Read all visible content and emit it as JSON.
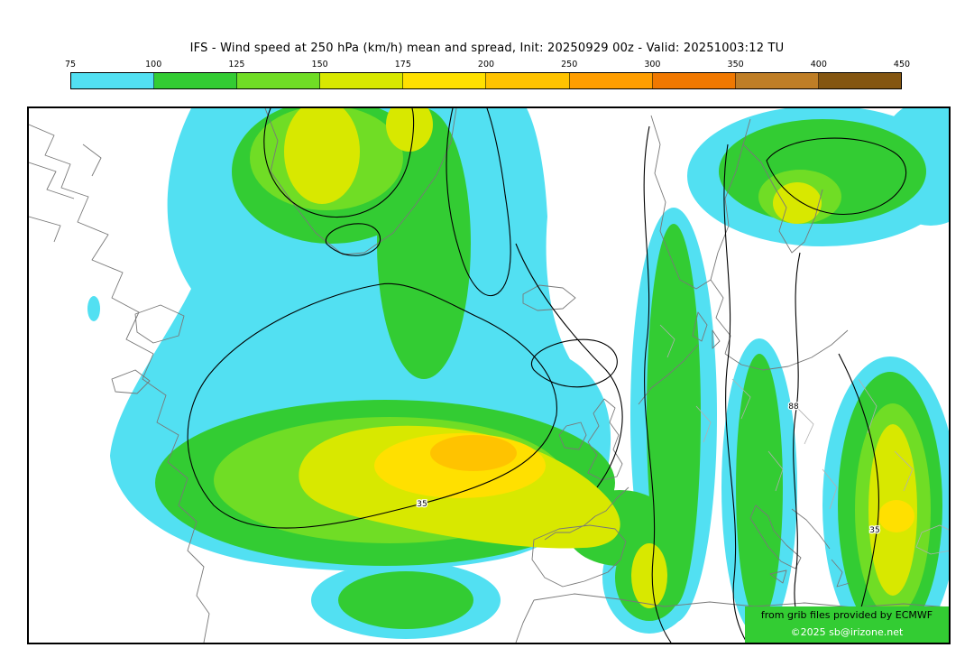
{
  "title": "IFS - Wind speed at 250 hPa (km/h) mean and spread, Init: 20250929 00z - Valid: 20251003:12 TU",
  "colorbar": {
    "tick_labels": [
      "75",
      "100",
      "125",
      "150",
      "175",
      "200",
      "250",
      "300",
      "350",
      "400",
      "450"
    ],
    "segment_colors": [
      "#52e0f2",
      "#33cc33",
      "#70dd25",
      "#d8e800",
      "#ffe000",
      "#ffc300",
      "#ff9e00",
      "#f07800",
      "#bf7e26",
      "#845611"
    ]
  },
  "map": {
    "contour_labels": [
      {
        "text": "35"
      },
      {
        "text": "88"
      },
      {
        "text": "35"
      }
    ],
    "attribution_source": "from grib files provided by ECMWF",
    "attribution_copyright": "©2025 sb@irizone.net",
    "attribution_background": "#33cc33",
    "contour_color": "#000000",
    "coastline_color": "#787878",
    "background_color": "#ffffff"
  }
}
